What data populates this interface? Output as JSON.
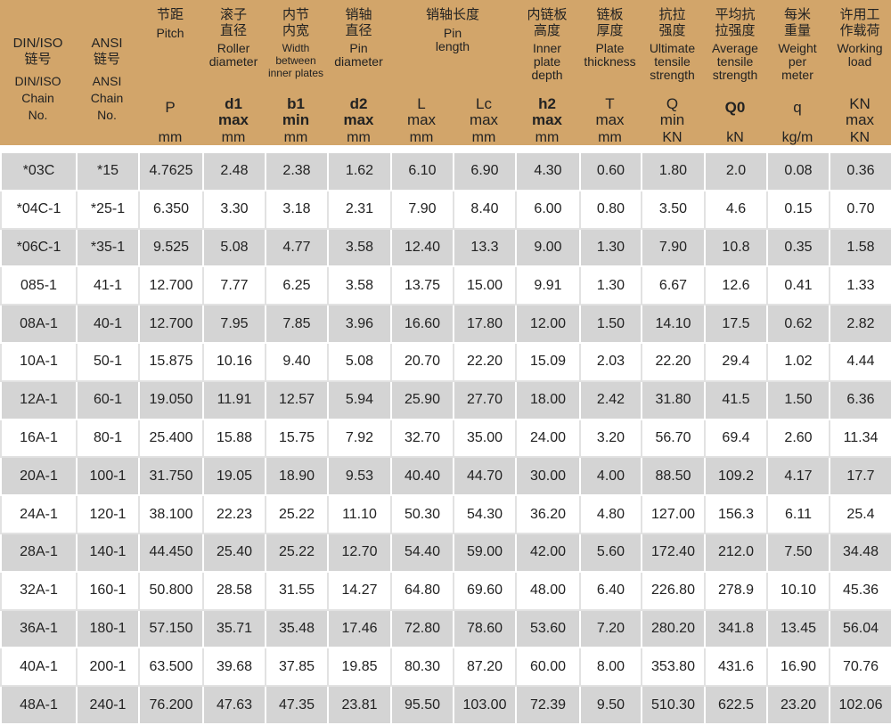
{
  "header": {
    "columns": [
      {
        "cn": "DIN/ISO\n链号",
        "en": "DIN/ISO\nChain\nNo.",
        "sym": "",
        "unit": ""
      },
      {
        "cn": "ANSI\n链号",
        "en": "ANSI\nChain\nNo.",
        "sym": "",
        "unit": ""
      },
      {
        "cn": "节距",
        "en": "Pitch",
        "sym": "P",
        "unit": "mm"
      },
      {
        "cn": "滚子\n直径",
        "en": "Roller\ndiameter",
        "sym": "d1\nmax",
        "unit": "mm"
      },
      {
        "cn": "内节\n内宽",
        "en": "Width\nbetween\ninner plates",
        "sym": "b1\nmin",
        "unit": "mm"
      },
      {
        "cn": "销轴\n直径",
        "en": "Pin\ndiameter",
        "sym": "d2\nmax",
        "unit": "mm"
      },
      {
        "cn": "销轴长度",
        "en": "Pin\nlength",
        "sym": "L\nmax",
        "unit": "mm",
        "sym2": "Lc\nmax",
        "unit2": "mm"
      },
      {
        "cn": "内链板\n高度",
        "en": "Inner\nplate\ndepth",
        "sym": "h2\nmax",
        "unit": "mm"
      },
      {
        "cn": "链板\n厚度",
        "en": "Plate\nthickness",
        "sym": "T\nmax",
        "unit": "mm"
      },
      {
        "cn": "抗拉\n强度",
        "en": "Ultimate\ntensile\nstrength",
        "sym": "Q\nmin",
        "unit": "KN"
      },
      {
        "cn": "平均抗\n拉强度",
        "en": "Average\ntensile\nstrength",
        "sym": "Q0",
        "unit": "kN"
      },
      {
        "cn": "每米\n重量",
        "en": "Weight\nper\nmeter",
        "sym": "q",
        "unit": "kg/m"
      },
      {
        "cn": "许用工\n作载荷",
        "en": "Working\nload",
        "sym": "KN\nmax",
        "unit": "KN"
      }
    ]
  },
  "rows": [
    [
      "*03C",
      "*15",
      "4.7625",
      "2.48",
      "2.38",
      "1.62",
      "6.10",
      "6.90",
      "4.30",
      "0.60",
      "1.80",
      "2.0",
      "0.08",
      "0.36"
    ],
    [
      "*04C-1",
      "*25-1",
      "6.350",
      "3.30",
      "3.18",
      "2.31",
      "7.90",
      "8.40",
      "6.00",
      "0.80",
      "3.50",
      "4.6",
      "0.15",
      "0.70"
    ],
    [
      "*06C-1",
      "*35-1",
      "9.525",
      "5.08",
      "4.77",
      "3.58",
      "12.40",
      "13.3",
      "9.00",
      "1.30",
      "7.90",
      "10.8",
      "0.35",
      "1.58"
    ],
    [
      "085-1",
      "41-1",
      "12.700",
      "7.77",
      "6.25",
      "3.58",
      "13.75",
      "15.00",
      "9.91",
      "1.30",
      "6.67",
      "12.6",
      "0.41",
      "1.33"
    ],
    [
      "08A-1",
      "40-1",
      "12.700",
      "7.95",
      "7.85",
      "3.96",
      "16.60",
      "17.80",
      "12.00",
      "1.50",
      "14.10",
      "17.5",
      "0.62",
      "2.82"
    ],
    [
      "10A-1",
      "50-1",
      "15.875",
      "10.16",
      "9.40",
      "5.08",
      "20.70",
      "22.20",
      "15.09",
      "2.03",
      "22.20",
      "29.4",
      "1.02",
      "4.44"
    ],
    [
      "12A-1",
      "60-1",
      "19.050",
      "11.91",
      "12.57",
      "5.94",
      "25.90",
      "27.70",
      "18.00",
      "2.42",
      "31.80",
      "41.5",
      "1.50",
      "6.36"
    ],
    [
      "16A-1",
      "80-1",
      "25.400",
      "15.88",
      "15.75",
      "7.92",
      "32.70",
      "35.00",
      "24.00",
      "3.20",
      "56.70",
      "69.4",
      "2.60",
      "11.34"
    ],
    [
      "20A-1",
      "100-1",
      "31.750",
      "19.05",
      "18.90",
      "9.53",
      "40.40",
      "44.70",
      "30.00",
      "4.00",
      "88.50",
      "109.2",
      "4.17",
      "17.7"
    ],
    [
      "24A-1",
      "120-1",
      "38.100",
      "22.23",
      "25.22",
      "11.10",
      "50.30",
      "54.30",
      "36.20",
      "4.80",
      "127.00",
      "156.3",
      "6.11",
      "25.4"
    ],
    [
      "28A-1",
      "140-1",
      "44.450",
      "25.40",
      "25.22",
      "12.70",
      "54.40",
      "59.00",
      "42.00",
      "5.60",
      "172.40",
      "212.0",
      "7.50",
      "34.48"
    ],
    [
      "32A-1",
      "160-1",
      "50.800",
      "28.58",
      "31.55",
      "14.27",
      "64.80",
      "69.60",
      "48.00",
      "6.40",
      "226.80",
      "278.9",
      "10.10",
      "45.36"
    ],
    [
      "36A-1",
      "180-1",
      "57.150",
      "35.71",
      "35.48",
      "17.46",
      "72.80",
      "78.60",
      "53.60",
      "7.20",
      "280.20",
      "341.8",
      "13.45",
      "56.04"
    ],
    [
      "40A-1",
      "200-1",
      "63.500",
      "39.68",
      "37.85",
      "19.85",
      "80.30",
      "87.20",
      "60.00",
      "8.00",
      "353.80",
      "431.6",
      "16.90",
      "70.76"
    ],
    [
      "48A-1",
      "240-1",
      "76.200",
      "47.63",
      "47.35",
      "23.81",
      "95.50",
      "103.00",
      "72.39",
      "9.50",
      "510.30",
      "622.5",
      "23.20",
      "102.06"
    ]
  ]
}
